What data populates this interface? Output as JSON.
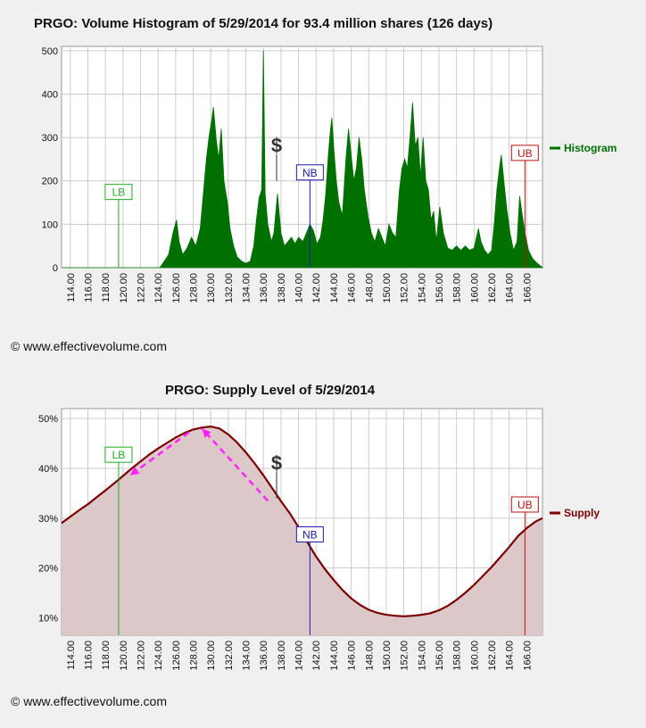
{
  "copyright": "© www.effectivevolume.com",
  "colors": {
    "histogram": "#007000",
    "supply_line": "#7a0000",
    "supply_fill": "#dcc8c8",
    "lb": "#22aa22",
    "nb": "#1a1aaa",
    "ub": "#bb1111",
    "arrows": "#ff22ff",
    "grid": "#cccccc"
  },
  "chart_data": [
    {
      "type": "area",
      "title": "PRGO: Volume Histogram of 5/29/2014 for 93.4 million shares (126 days)",
      "legend": "Histogram",
      "legend_position": "right",
      "xlabel": "",
      "ylabel": "",
      "xlim": [
        113,
        167.8
      ],
      "ylim": [
        0,
        510
      ],
      "yticks": [
        0,
        100,
        200,
        300,
        400,
        500
      ],
      "xtick_labels": [
        "114.00",
        "116.00",
        "118.00",
        "120.00",
        "122.00",
        "124.00",
        "126.00",
        "128.00",
        "130.00",
        "132.00",
        "134.00",
        "136.00",
        "138.00",
        "140.00",
        "142.00",
        "144.00",
        "146.00",
        "148.00",
        "150.00",
        "152.00",
        "154.00",
        "156.00",
        "158.00",
        "160.00",
        "162.00",
        "164.00",
        "166.00"
      ],
      "markers": [
        {
          "label": "LB",
          "x": 119.5,
          "value": 120
        },
        {
          "label": "$",
          "x": 137.5,
          "value": 200
        },
        {
          "label": "NB",
          "x": 141.3,
          "value": 165
        },
        {
          "label": "UB",
          "x": 165.8,
          "value": 210
        }
      ],
      "series": [
        {
          "name": "Histogram",
          "points": [
            [
              113,
              0
            ],
            [
              124.2,
              0
            ],
            [
              124.7,
              15
            ],
            [
              125.2,
              30
            ],
            [
              125.7,
              80
            ],
            [
              126.1,
              110
            ],
            [
              126.4,
              60
            ],
            [
              126.8,
              30
            ],
            [
              127.3,
              45
            ],
            [
              127.8,
              70
            ],
            [
              128.3,
              50
            ],
            [
              128.8,
              90
            ],
            [
              129.2,
              180
            ],
            [
              129.5,
              250
            ],
            [
              129.8,
              300
            ],
            [
              130.1,
              340
            ],
            [
              130.3,
              370
            ],
            [
              130.6,
              300
            ],
            [
              130.9,
              250
            ],
            [
              131.2,
              320
            ],
            [
              131.5,
              200
            ],
            [
              131.9,
              150
            ],
            [
              132.2,
              90
            ],
            [
              132.6,
              50
            ],
            [
              133.0,
              25
            ],
            [
              133.5,
              15
            ],
            [
              134.0,
              10
            ],
            [
              134.5,
              15
            ],
            [
              134.9,
              50
            ],
            [
              135.2,
              110
            ],
            [
              135.5,
              160
            ],
            [
              135.8,
              180
            ],
            [
              136.0,
              500
            ],
            [
              136.2,
              170
            ],
            [
              136.5,
              100
            ],
            [
              136.9,
              60
            ],
            [
              137.2,
              80
            ],
            [
              137.6,
              170
            ],
            [
              138.0,
              80
            ],
            [
              138.4,
              50
            ],
            [
              138.8,
              60
            ],
            [
              139.2,
              70
            ],
            [
              139.6,
              55
            ],
            [
              140.0,
              70
            ],
            [
              140.5,
              60
            ],
            [
              140.9,
              80
            ],
            [
              141.3,
              100
            ],
            [
              141.7,
              85
            ],
            [
              142.1,
              55
            ],
            [
              142.5,
              70
            ],
            [
              142.8,
              110
            ],
            [
              143.1,
              170
            ],
            [
              143.4,
              260
            ],
            [
              143.6,
              310
            ],
            [
              143.8,
              345
            ],
            [
              144.0,
              280
            ],
            [
              144.3,
              200
            ],
            [
              144.6,
              150
            ],
            [
              145.0,
              120
            ],
            [
              145.4,
              250
            ],
            [
              145.7,
              320
            ],
            [
              146.0,
              260
            ],
            [
              146.3,
              200
            ],
            [
              146.6,
              230
            ],
            [
              146.9,
              300
            ],
            [
              147.2,
              250
            ],
            [
              147.5,
              180
            ],
            [
              147.9,
              120
            ],
            [
              148.3,
              80
            ],
            [
              148.7,
              60
            ],
            [
              149.1,
              90
            ],
            [
              149.5,
              70
            ],
            [
              149.9,
              50
            ],
            [
              150.3,
              100
            ],
            [
              150.7,
              80
            ],
            [
              151.1,
              70
            ],
            [
              151.5,
              180
            ],
            [
              151.8,
              230
            ],
            [
              152.1,
              250
            ],
            [
              152.4,
              230
            ],
            [
              152.7,
              300
            ],
            [
              153.0,
              380
            ],
            [
              153.3,
              280
            ],
            [
              153.6,
              300
            ],
            [
              153.9,
              210
            ],
            [
              154.2,
              300
            ],
            [
              154.5,
              200
            ],
            [
              154.8,
              180
            ],
            [
              155.1,
              110
            ],
            [
              155.4,
              130
            ],
            [
              155.7,
              60
            ],
            [
              156.1,
              140
            ],
            [
              156.5,
              80
            ],
            [
              157.0,
              45
            ],
            [
              157.5,
              40
            ],
            [
              158.0,
              50
            ],
            [
              158.5,
              40
            ],
            [
              159.0,
              50
            ],
            [
              159.5,
              40
            ],
            [
              160.0,
              45
            ],
            [
              160.5,
              90
            ],
            [
              160.8,
              60
            ],
            [
              161.2,
              40
            ],
            [
              161.6,
              30
            ],
            [
              162.0,
              40
            ],
            [
              162.3,
              100
            ],
            [
              162.6,
              180
            ],
            [
              162.9,
              230
            ],
            [
              163.1,
              260
            ],
            [
              163.4,
              200
            ],
            [
              163.7,
              140
            ],
            [
              164.1,
              80
            ],
            [
              164.5,
              40
            ],
            [
              164.9,
              60
            ],
            [
              165.2,
              165
            ],
            [
              165.5,
              120
            ],
            [
              165.8,
              80
            ],
            [
              166.2,
              40
            ],
            [
              166.7,
              20
            ],
            [
              167.2,
              10
            ],
            [
              167.8,
              0
            ]
          ]
        }
      ]
    },
    {
      "type": "area",
      "title": "PRGO: Supply Level of 5/29/2014",
      "legend": "Supply",
      "legend_position": "right",
      "xlabel": "",
      "ylabel": "",
      "xlim": [
        113,
        167.8
      ],
      "ylim": [
        6.5,
        52
      ],
      "yticks": [
        10,
        20,
        30,
        40,
        50
      ],
      "ytick_labels": [
        "10%",
        "20%",
        "30%",
        "40%",
        "50%"
      ],
      "xtick_labels": [
        "114.00",
        "116.00",
        "118.00",
        "120.00",
        "122.00",
        "124.00",
        "126.00",
        "128.00",
        "130.00",
        "132.00",
        "134.00",
        "136.00",
        "138.00",
        "140.00",
        "142.00",
        "144.00",
        "146.00",
        "148.00",
        "150.00",
        "152.00",
        "154.00",
        "156.00",
        "158.00",
        "160.00",
        "162.00",
        "164.00",
        "166.00"
      ],
      "markers": [
        {
          "label": "LB",
          "x": 119.5,
          "value": 38
        },
        {
          "label": "$",
          "x": 137.5,
          "value": 34
        },
        {
          "label": "NB",
          "x": 141.3,
          "value": 22
        },
        {
          "label": "UB",
          "x": 165.8,
          "value": 28
        }
      ],
      "arrows": [
        {
          "from": [
            127.5,
            47.2
          ],
          "to": [
            120.8,
            38.6
          ]
        },
        {
          "from": [
            136.5,
            33.5
          ],
          "to": [
            129.0,
            48.0
          ]
        }
      ],
      "series": [
        {
          "name": "Supply",
          "points": [
            [
              113,
              29
            ],
            [
              114,
              30.3
            ],
            [
              115,
              31.6
            ],
            [
              116,
              32.8
            ],
            [
              117,
              34.2
            ],
            [
              118,
              35.6
            ],
            [
              119,
              37.0
            ],
            [
              120,
              38.5
            ],
            [
              121,
              40.0
            ],
            [
              122,
              41.4
            ],
            [
              123,
              42.8
            ],
            [
              124,
              44.0
            ],
            [
              125,
              45.1
            ],
            [
              126,
              46.2
            ],
            [
              127,
              47.1
            ],
            [
              128,
              47.8
            ],
            [
              129,
              48.2
            ],
            [
              130,
              48.4
            ],
            [
              131,
              48.0
            ],
            [
              132,
              46.8
            ],
            [
              133,
              45.2
            ],
            [
              134,
              43.2
            ],
            [
              135,
              41.0
            ],
            [
              136,
              38.6
            ],
            [
              137,
              36.0
            ],
            [
              138,
              33.4
            ],
            [
              139,
              31.0
            ],
            [
              140,
              28.2
            ],
            [
              141,
              25.2
            ],
            [
              142,
              22.3
            ],
            [
              143,
              19.8
            ],
            [
              144,
              17.6
            ],
            [
              145,
              15.6
            ],
            [
              146,
              13.9
            ],
            [
              147,
              12.6
            ],
            [
              148,
              11.6
            ],
            [
              149,
              11.0
            ],
            [
              150,
              10.6
            ],
            [
              151,
              10.4
            ],
            [
              152,
              10.3
            ],
            [
              153,
              10.4
            ],
            [
              154,
              10.6
            ],
            [
              155,
              10.9
            ],
            [
              156,
              11.5
            ],
            [
              157,
              12.4
            ],
            [
              158,
              13.6
            ],
            [
              159,
              15.0
            ],
            [
              160,
              16.6
            ],
            [
              161,
              18.4
            ],
            [
              162,
              20.2
            ],
            [
              163,
              22.2
            ],
            [
              164,
              24.2
            ],
            [
              165,
              26.4
            ],
            [
              166,
              28.0
            ],
            [
              167,
              29.3
            ],
            [
              167.8,
              30.0
            ]
          ]
        }
      ]
    }
  ]
}
